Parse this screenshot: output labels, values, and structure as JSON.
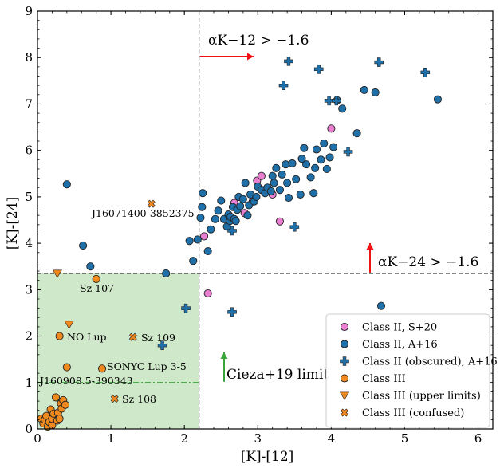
{
  "chart_data": {
    "type": "scatter",
    "xlabel": "[K]-[12]",
    "ylabel": "[K]-[24]",
    "xlim": [
      0,
      6.2
    ],
    "ylim": [
      0,
      9
    ],
    "xticks": [
      0,
      1,
      2,
      3,
      4,
      5,
      6
    ],
    "yticks": [
      0,
      1,
      2,
      3,
      4,
      5,
      6,
      7,
      8,
      9
    ],
    "grid": false,
    "legend_placement": "lower-right",
    "colors": {
      "pink": "#e87fd0",
      "blue": "#1f6fa8",
      "orange": "#f08a1e",
      "edge": "#222222",
      "green_fill": "#cfe8c9",
      "green_line": "#3aa33a",
      "red_arrow": "#ee1111"
    },
    "thresholds": {
      "alpha_k12_x": 2.2,
      "alpha_k24_y": 3.35,
      "cieza_y": 1.0
    },
    "annotations": {
      "alpha_k12": "αK−12 > −1.6",
      "alpha_k24": "αK−24 > −1.6",
      "cieza": "Cieza+19 limit",
      "j1607": "J16071400-3852375",
      "sz107": "Sz 107",
      "nolup": "NO Lup",
      "sz109": "Sz 109",
      "sonyc": "SONYC Lup 3-5",
      "j1609": "J160908.5-390343",
      "sz108": "Sz 108"
    },
    "series": [
      {
        "name": "Class II, S+20",
        "marker": "circle",
        "color": "#e87fd0",
        "points": [
          [
            2.27,
            4.15
          ],
          [
            2.32,
            2.92
          ],
          [
            2.68,
            4.87
          ],
          [
            2.82,
            4.65
          ],
          [
            2.93,
            4.9
          ],
          [
            2.99,
            5.35
          ],
          [
            3.05,
            5.45
          ],
          [
            3.2,
            5.05
          ],
          [
            3.3,
            4.47
          ],
          [
            4.0,
            6.47
          ]
        ]
      },
      {
        "name": "Class II, A+16",
        "marker": "circle",
        "color": "#1f6fa8",
        "points": [
          [
            0.4,
            5.27
          ],
          [
            0.62,
            3.95
          ],
          [
            0.72,
            3.5
          ],
          [
            1.75,
            3.35
          ],
          [
            2.07,
            4.05
          ],
          [
            2.12,
            3.62
          ],
          [
            2.18,
            4.08
          ],
          [
            2.22,
            4.55
          ],
          [
            2.24,
            4.78
          ],
          [
            2.25,
            5.08
          ],
          [
            2.32,
            3.83
          ],
          [
            2.36,
            4.3
          ],
          [
            2.42,
            4.52
          ],
          [
            2.46,
            4.7
          ],
          [
            2.5,
            4.92
          ],
          [
            2.54,
            4.52
          ],
          [
            2.58,
            4.36
          ],
          [
            2.6,
            4.62
          ],
          [
            2.62,
            4.48
          ],
          [
            2.63,
            4.57
          ],
          [
            2.66,
            4.78
          ],
          [
            2.68,
            4.52
          ],
          [
            2.7,
            4.48
          ],
          [
            2.72,
            4.72
          ],
          [
            2.74,
            5.0
          ],
          [
            2.76,
            4.8
          ],
          [
            2.8,
            4.95
          ],
          [
            2.83,
            5.3
          ],
          [
            2.86,
            4.6
          ],
          [
            2.88,
            4.82
          ],
          [
            2.9,
            5.05
          ],
          [
            2.95,
            4.9
          ],
          [
            2.98,
            5.0
          ],
          [
            3.0,
            5.22
          ],
          [
            3.05,
            5.15
          ],
          [
            3.1,
            5.08
          ],
          [
            3.13,
            5.2
          ],
          [
            3.18,
            5.12
          ],
          [
            3.2,
            5.45
          ],
          [
            3.22,
            5.3
          ],
          [
            3.25,
            5.62
          ],
          [
            3.3,
            5.15
          ],
          [
            3.33,
            5.48
          ],
          [
            3.38,
            5.7
          ],
          [
            3.4,
            5.3
          ],
          [
            3.42,
            4.98
          ],
          [
            3.47,
            5.72
          ],
          [
            3.52,
            5.38
          ],
          [
            3.58,
            5.05
          ],
          [
            3.6,
            5.82
          ],
          [
            3.63,
            6.05
          ],
          [
            3.66,
            5.7
          ],
          [
            3.72,
            5.42
          ],
          [
            3.76,
            5.08
          ],
          [
            3.78,
            5.62
          ],
          [
            3.8,
            6.02
          ],
          [
            3.86,
            5.8
          ],
          [
            3.9,
            6.15
          ],
          [
            3.94,
            5.6
          ],
          [
            3.98,
            5.85
          ],
          [
            4.03,
            6.07
          ],
          [
            4.08,
            7.08
          ],
          [
            4.15,
            6.9
          ],
          [
            4.35,
            6.37
          ],
          [
            4.45,
            7.3
          ],
          [
            4.6,
            7.25
          ],
          [
            4.68,
            2.65
          ],
          [
            5.45,
            7.1
          ]
        ]
      },
      {
        "name": "Class II (obscured), A+16",
        "marker": "plus",
        "color": "#1f6fa8",
        "points": [
          [
            1.7,
            1.8
          ],
          [
            2.02,
            2.6
          ],
          [
            2.65,
            2.52
          ],
          [
            2.65,
            4.27
          ],
          [
            3.35,
            7.4
          ],
          [
            3.42,
            7.92
          ],
          [
            3.5,
            4.35
          ],
          [
            3.83,
            7.75
          ],
          [
            3.97,
            7.07
          ],
          [
            4.07,
            7.07
          ],
          [
            4.23,
            5.97
          ],
          [
            4.65,
            7.9
          ],
          [
            5.28,
            7.68
          ]
        ]
      },
      {
        "name": "Class III",
        "marker": "circle",
        "color": "#f08a1e",
        "points": [
          [
            0.05,
            0.22
          ],
          [
            0.08,
            0.12
          ],
          [
            0.1,
            0.2
          ],
          [
            0.12,
            0.28
          ],
          [
            0.14,
            0.05
          ],
          [
            0.16,
            0.15
          ],
          [
            0.18,
            0.42
          ],
          [
            0.2,
            0.08
          ],
          [
            0.2,
            0.22
          ],
          [
            0.22,
            0.33
          ],
          [
            0.25,
            0.68
          ],
          [
            0.27,
            0.18
          ],
          [
            0.28,
            0.35
          ],
          [
            0.3,
            0.22
          ],
          [
            0.32,
            0.55
          ],
          [
            0.33,
            0.44
          ],
          [
            0.35,
            0.62
          ],
          [
            0.38,
            0.52
          ],
          [
            0.4,
            1.33
          ],
          [
            0.3,
            2.0
          ],
          [
            0.8,
            3.23
          ],
          [
            0.88,
            1.3
          ]
        ]
      },
      {
        "name": "Class III (upper limits)",
        "marker": "triangle-down",
        "color": "#f08a1e",
        "points": [
          [
            0.27,
            3.35
          ],
          [
            0.43,
            2.25
          ]
        ]
      },
      {
        "name": "Class III (confused)",
        "marker": "x",
        "color": "#f08a1e",
        "points": [
          [
            1.55,
            4.85
          ],
          [
            1.3,
            1.98
          ],
          [
            1.05,
            0.65
          ]
        ]
      }
    ]
  }
}
